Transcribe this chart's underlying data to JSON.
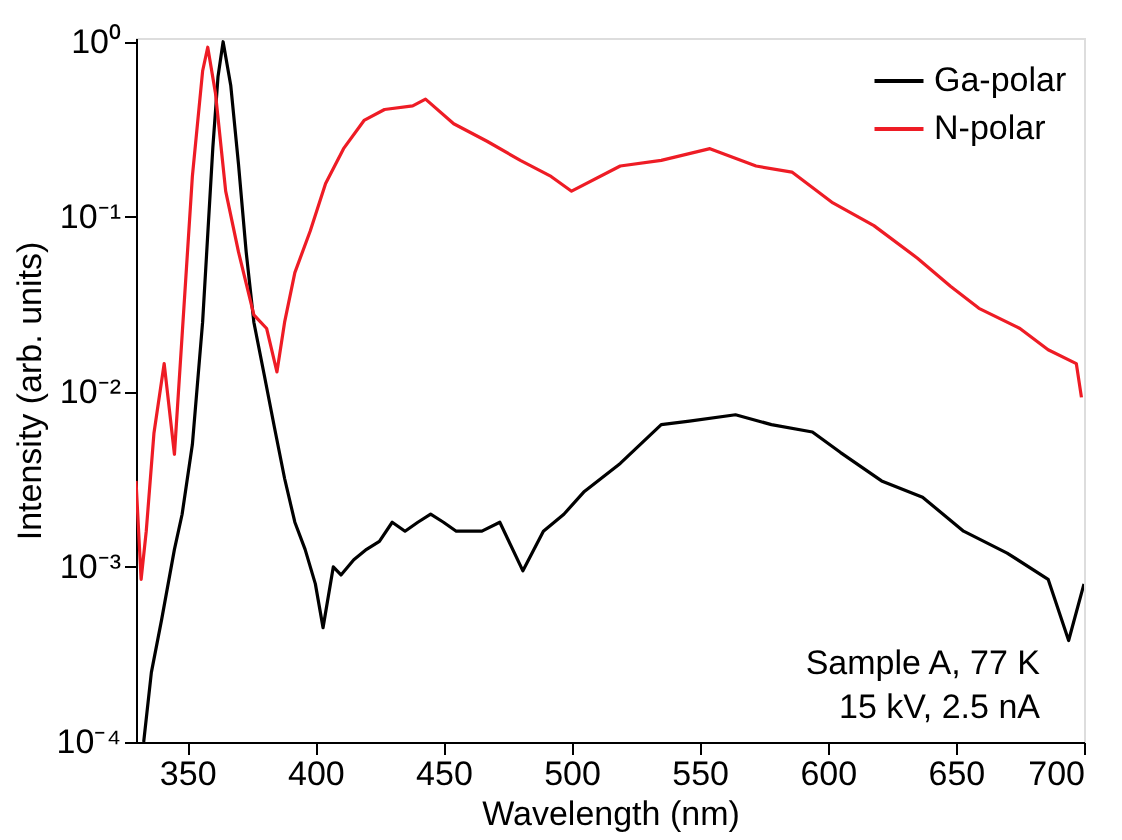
{
  "chart_data": {
    "type": "line",
    "xlabel": "Wavelength (nm)",
    "ylabel": "Intensity (arb. units)",
    "xlim": [
      330,
      700
    ],
    "xticks": [
      350,
      400,
      450,
      500,
      550,
      600,
      650,
      700
    ],
    "ylim": [
      0.0001,
      1.05
    ],
    "log": "y",
    "yticks": [
      {
        "value": 0.0001,
        "label": "10⁻⁴"
      },
      {
        "value": 0.001,
        "label": "10⁻³"
      },
      {
        "value": 0.01,
        "label": "10⁻²"
      },
      {
        "value": 0.1,
        "label": "10⁻¹"
      },
      {
        "value": 1,
        "label": "10⁰"
      }
    ],
    "grid": false,
    "legend": "top right",
    "marker": "none",
    "line_style": "solid",
    "annotations": [
      "Sample A, 77 K",
      "15 kV, 2.5 nA"
    ],
    "series": [
      {
        "name": "Ga-polar",
        "color": "#000000",
        "x": [
          333,
          336,
          340,
          345,
          348,
          352,
          356,
          360,
          362,
          364,
          367,
          370,
          373,
          376,
          380,
          384,
          388,
          392,
          396,
          400,
          403,
          407,
          410,
          415,
          420,
          425,
          430,
          435,
          440,
          445,
          450,
          455,
          465,
          472,
          481,
          489,
          497,
          505,
          519,
          535,
          546,
          564,
          578,
          594,
          605,
          621,
          637,
          653,
          670,
          686,
          694,
          700
        ],
        "values": [
          0.0001,
          0.00025,
          0.0005,
          0.00126,
          0.002,
          0.005,
          0.025,
          0.25,
          0.63,
          1.0,
          0.56,
          0.2,
          0.063,
          0.025,
          0.0126,
          0.0063,
          0.0032,
          0.0018,
          0.00126,
          0.0008,
          0.00045,
          0.001,
          0.0009,
          0.0011,
          0.00126,
          0.0014,
          0.0018,
          0.0016,
          0.0018,
          0.002,
          0.0018,
          0.0016,
          0.0016,
          0.0018,
          0.00095,
          0.0016,
          0.002,
          0.0027,
          0.0039,
          0.0065,
          0.0068,
          0.0074,
          0.0065,
          0.0059,
          0.0045,
          0.0031,
          0.0025,
          0.0016,
          0.0012,
          0.00085,
          0.00038,
          0.0008
        ]
      },
      {
        "name": "N-polar",
        "color": "#ee1c25",
        "x": [
          330,
          332,
          334,
          337,
          341,
          345,
          348,
          352,
          356,
          358,
          361,
          365,
          370,
          376,
          381,
          385,
          388,
          392,
          398,
          404,
          411,
          419,
          427,
          438,
          443,
          454,
          467,
          480,
          492,
          500,
          519,
          535,
          554,
          572,
          586,
          602,
          618,
          635,
          648,
          659,
          675,
          686,
          697,
          699
        ],
        "values": [
          0.0031,
          0.00085,
          0.0016,
          0.0058,
          0.0145,
          0.0044,
          0.021,
          0.17,
          0.68,
          0.93,
          0.51,
          0.14,
          0.063,
          0.0275,
          0.023,
          0.013,
          0.025,
          0.048,
          0.083,
          0.155,
          0.245,
          0.355,
          0.41,
          0.43,
          0.47,
          0.34,
          0.27,
          0.21,
          0.17,
          0.14,
          0.195,
          0.21,
          0.245,
          0.195,
          0.18,
          0.12,
          0.089,
          0.058,
          0.04,
          0.03,
          0.023,
          0.0174,
          0.0145,
          0.0093
        ]
      }
    ]
  }
}
